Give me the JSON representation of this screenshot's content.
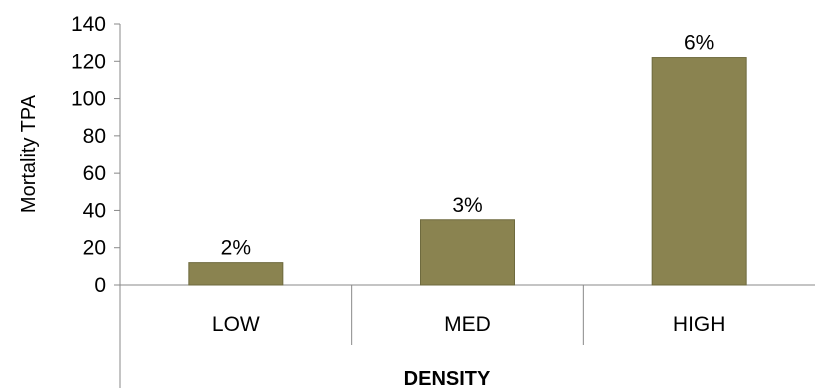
{
  "chart_data": {
    "type": "bar",
    "categories": [
      "LOW",
      "MED",
      "HIGH"
    ],
    "values": [
      12,
      35,
      122
    ],
    "data_labels": [
      "2%",
      "3%",
      "6%"
    ],
    "xlabel": "DENSITY",
    "ylabel": "Mortality TPA",
    "ylim": [
      0,
      140
    ],
    "yticks": [
      0,
      20,
      40,
      60,
      80,
      100,
      120,
      140
    ],
    "grid": false,
    "legend": "none",
    "bar_color": "#8a8350",
    "bar_edge_color": "#6e6a3e"
  }
}
